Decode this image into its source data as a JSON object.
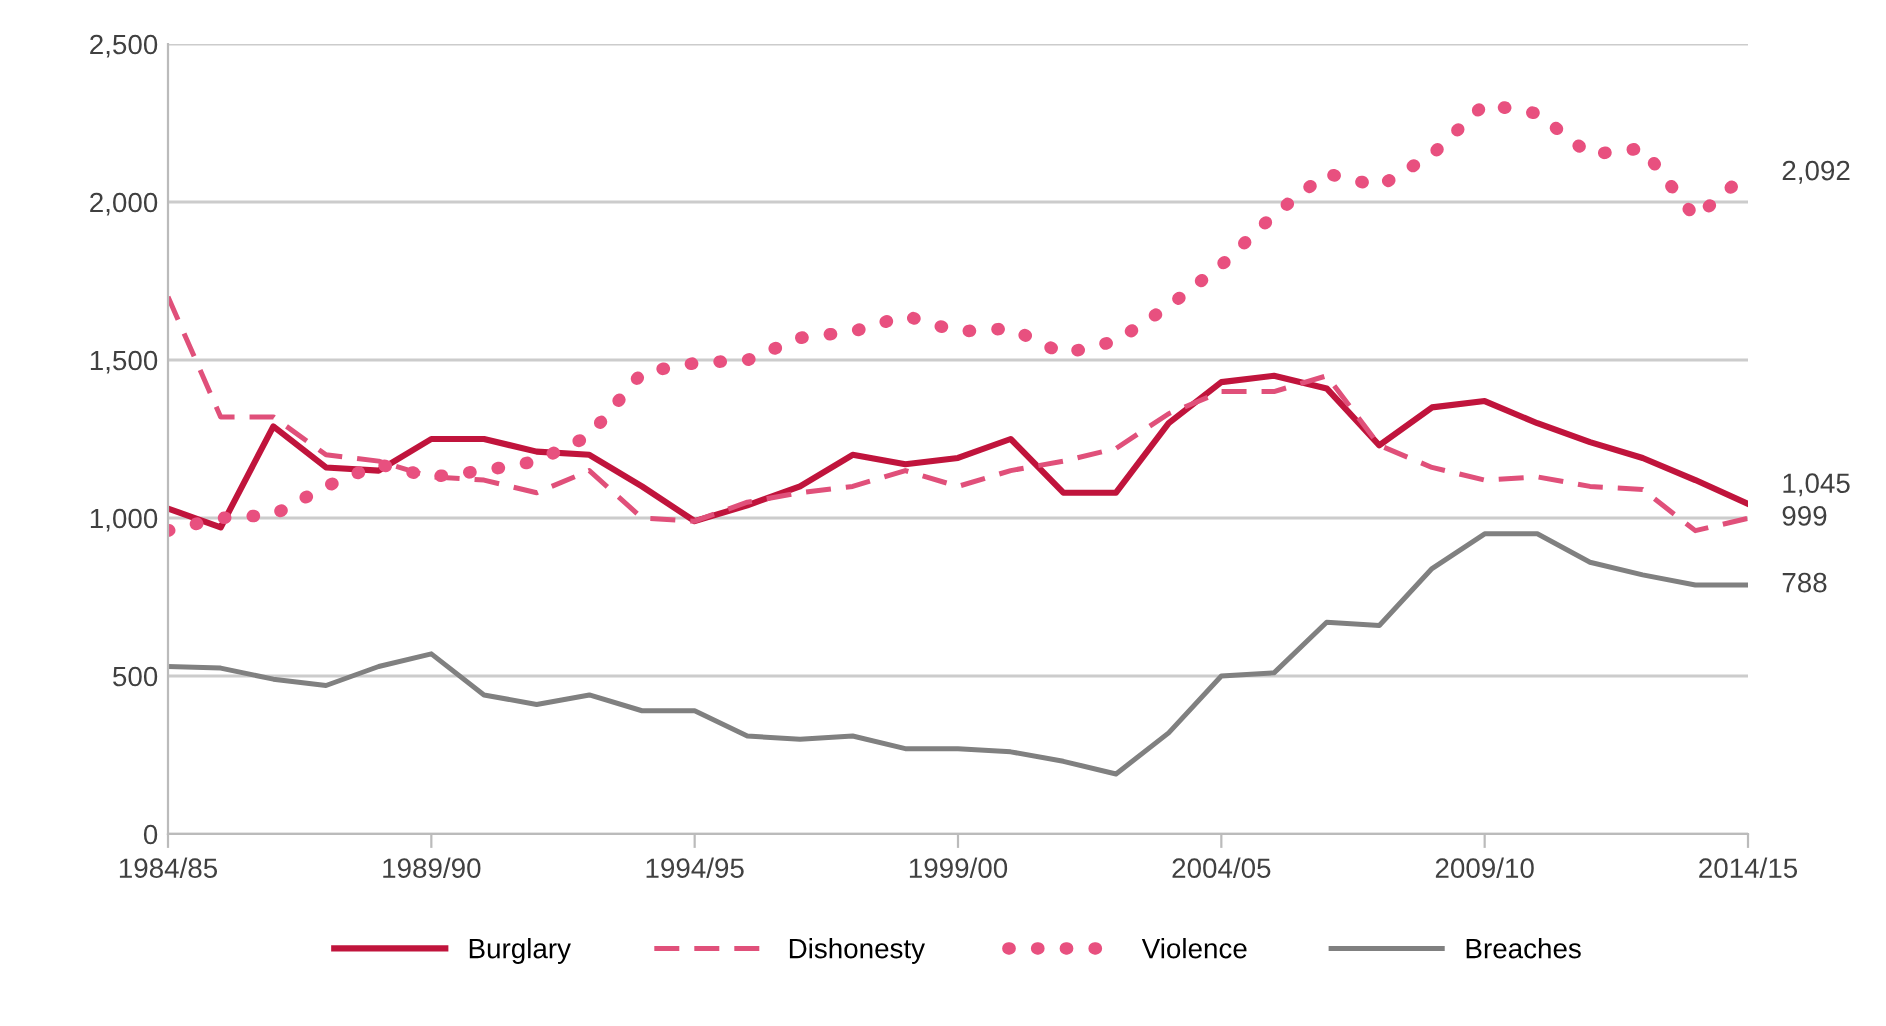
{
  "chart_data": {
    "type": "line",
    "categories": [
      "1984/85",
      null,
      null,
      null,
      null,
      "1989/90",
      null,
      null,
      null,
      null,
      "1994/95",
      null,
      null,
      null,
      null,
      "1999/00",
      null,
      null,
      null,
      null,
      "2004/05",
      null,
      null,
      null,
      null,
      "2009/10",
      null,
      null,
      null,
      null,
      "2014/15"
    ],
    "series": [
      {
        "name": "Burglary",
        "color": "#c0143c",
        "line_style": "solid",
        "values": [
          1030,
          970,
          1290,
          1160,
          1150,
          1250,
          1250,
          1210,
          1200,
          1100,
          990,
          1040,
          1100,
          1200,
          1170,
          1190,
          1250,
          1080,
          1080,
          1300,
          1430,
          1450,
          1410,
          1230,
          1350,
          1370,
          1300,
          1240,
          1190,
          1120,
          1045
        ],
        "value_labels": [
          null,
          null,
          null,
          null,
          null,
          null,
          null,
          null,
          null,
          null,
          null,
          null,
          null,
          null,
          null,
          null,
          null,
          null,
          null,
          null,
          null,
          null,
          null,
          null,
          null,
          null,
          null,
          null,
          null,
          null,
          "1,045"
        ]
      },
      {
        "name": "Dishonesty",
        "color": "#e0507a",
        "line_style": "dashed",
        "values": [
          1700,
          1320,
          1320,
          1200,
          1180,
          1130,
          1120,
          1080,
          1150,
          1000,
          990,
          1050,
          1080,
          1100,
          1150,
          1100,
          1150,
          1180,
          1220,
          1330,
          1400,
          1400,
          1450,
          1230,
          1160,
          1120,
          1130,
          1100,
          1090,
          960,
          999
        ],
        "value_labels": [
          null,
          null,
          null,
          null,
          null,
          null,
          null,
          null,
          null,
          null,
          null,
          null,
          null,
          null,
          null,
          null,
          null,
          null,
          null,
          null,
          null,
          null,
          null,
          null,
          null,
          null,
          null,
          null,
          null,
          null,
          "999"
        ]
      },
      {
        "name": "Violence",
        "color": "#e8507f",
        "line_style": "dotted",
        "values": [
          960,
          1000,
          1010,
          1100,
          1170,
          1130,
          1150,
          1180,
          1260,
          1460,
          1490,
          1500,
          1570,
          1590,
          1640,
          1590,
          1600,
          1520,
          1560,
          1670,
          1800,
          1960,
          2090,
          2050,
          2150,
          2310,
          2280,
          2150,
          2170,
          1950,
          2092
        ],
        "value_labels": [
          null,
          null,
          null,
          null,
          null,
          null,
          null,
          null,
          null,
          null,
          null,
          null,
          null,
          null,
          null,
          null,
          null,
          null,
          null,
          null,
          null,
          null,
          null,
          null,
          null,
          null,
          null,
          null,
          null,
          null,
          "2,092"
        ]
      },
      {
        "name": "Breaches",
        "color": "#808080",
        "line_style": "solid",
        "values": [
          530,
          525,
          490,
          470,
          530,
          570,
          440,
          410,
          440,
          390,
          390,
          310,
          300,
          310,
          270,
          270,
          260,
          230,
          190,
          320,
          500,
          510,
          670,
          660,
          840,
          950,
          950,
          860,
          820,
          788,
          788
        ],
        "value_labels": [
          null,
          null,
          null,
          null,
          null,
          null,
          null,
          null,
          null,
          null,
          null,
          null,
          null,
          null,
          null,
          null,
          null,
          null,
          null,
          null,
          null,
          null,
          null,
          null,
          null,
          null,
          null,
          null,
          null,
          null,
          "788"
        ]
      }
    ],
    "ylim": [
      0,
      2500
    ],
    "yticks": [
      {
        "value": 0,
        "label": "0"
      },
      {
        "value": 500,
        "label": "500"
      },
      {
        "value": 1000,
        "label": "1,000"
      },
      {
        "value": 1500,
        "label": "1,500"
      },
      {
        "value": 2000,
        "label": "2,000"
      },
      {
        "value": 2500,
        "label": "2,500"
      }
    ],
    "grid": "y",
    "legend": "bottom",
    "marker": "none"
  }
}
